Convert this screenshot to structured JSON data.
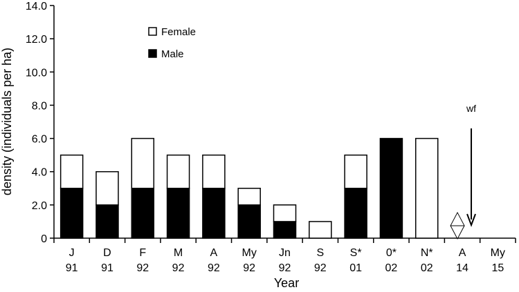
{
  "chart_data": {
    "type": "bar",
    "stacked": true,
    "ylabel": "density (individuals per ha)",
    "xlabel": "Year",
    "ylim": [
      0,
      14
    ],
    "yticks": [
      "0",
      "2.0",
      "4.0",
      "6.0",
      "8.0",
      "10.0",
      "12.0",
      "14.0"
    ],
    "grid": false,
    "legend_position": "top-left",
    "categories": [
      {
        "top": "J",
        "bottom": "91"
      },
      {
        "top": "D",
        "bottom": "91"
      },
      {
        "top": "F",
        "bottom": "92"
      },
      {
        "top": "M",
        "bottom": "92"
      },
      {
        "top": "A",
        "bottom": "92"
      },
      {
        "top": "My",
        "bottom": "92"
      },
      {
        "top": "Jn",
        "bottom": "92"
      },
      {
        "top": "S",
        "bottom": "92"
      },
      {
        "top": "S*",
        "bottom": "01"
      },
      {
        "top": "0*",
        "bottom": "02"
      },
      {
        "top": "N*",
        "bottom": "02"
      },
      {
        "top": "A",
        "bottom": "14"
      },
      {
        "top": "My",
        "bottom": "15"
      }
    ],
    "series": [
      {
        "name": "Male",
        "color": "#000000",
        "values": [
          3,
          2,
          3,
          3,
          3,
          2,
          1,
          0,
          3,
          6,
          0,
          null,
          null
        ]
      },
      {
        "name": "Female",
        "color": "#ffffff",
        "values": [
          2,
          2,
          3,
          2,
          2,
          1,
          1,
          1,
          2,
          0,
          6,
          null,
          null
        ]
      }
    ],
    "legend": [
      {
        "label": "Female",
        "swatch": "#ffffff"
      },
      {
        "label": "Male",
        "swatch": "#000000"
      }
    ],
    "annotations": [
      {
        "text": "wf",
        "category_index": 11,
        "marker": "down-arrow"
      },
      {
        "category_index": 11,
        "marker": "diamond-with-line",
        "value": 0.75
      }
    ]
  }
}
